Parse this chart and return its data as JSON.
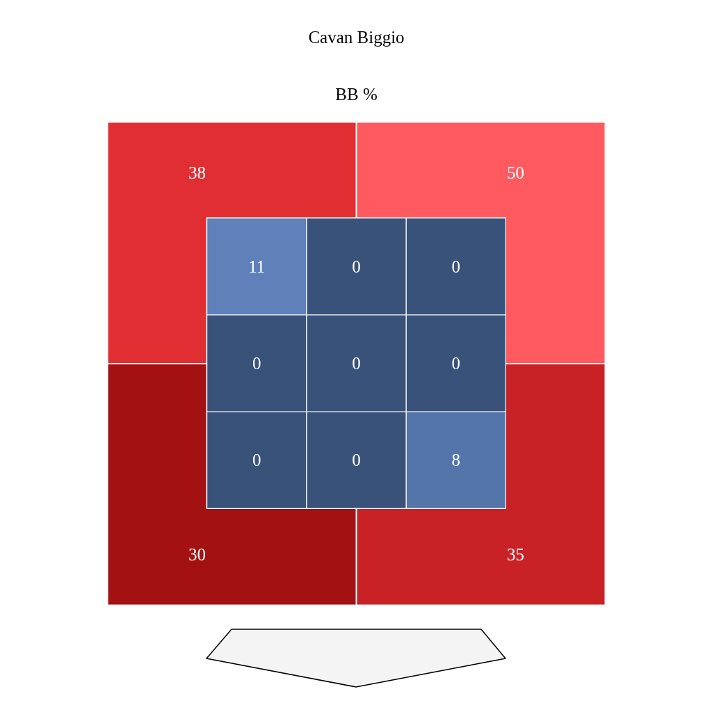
{
  "chart_data": [
    {
      "type": "heatmap",
      "title": "Cavan Biggio",
      "subtitle": "BB %",
      "categories": [
        null,
        null
      ],
      "y_categories": [
        null,
        null
      ],
      "cells": [
        [
          38,
          50
        ],
        [
          30,
          35
        ]
      ],
      "colors": [
        "#e02e32",
        "#ff5a60",
        "#a31113",
        "#c92226"
      ],
      "data_labels": true
    },
    {
      "type": "heatmap",
      "categories": [
        null,
        null,
        null
      ],
      "y_categories": [
        null,
        null,
        null
      ],
      "cells": [
        [
          11,
          0,
          0
        ],
        [
          0,
          0,
          0
        ],
        [
          0,
          0,
          8
        ]
      ],
      "colors": [
        "#5f80b8",
        "#39527a",
        "#39527a",
        "#39527a",
        "#39527a",
        "#39527a",
        "#39527a",
        "#39527a",
        "#5475aa"
      ],
      "data_labels": true
    }
  ]
}
